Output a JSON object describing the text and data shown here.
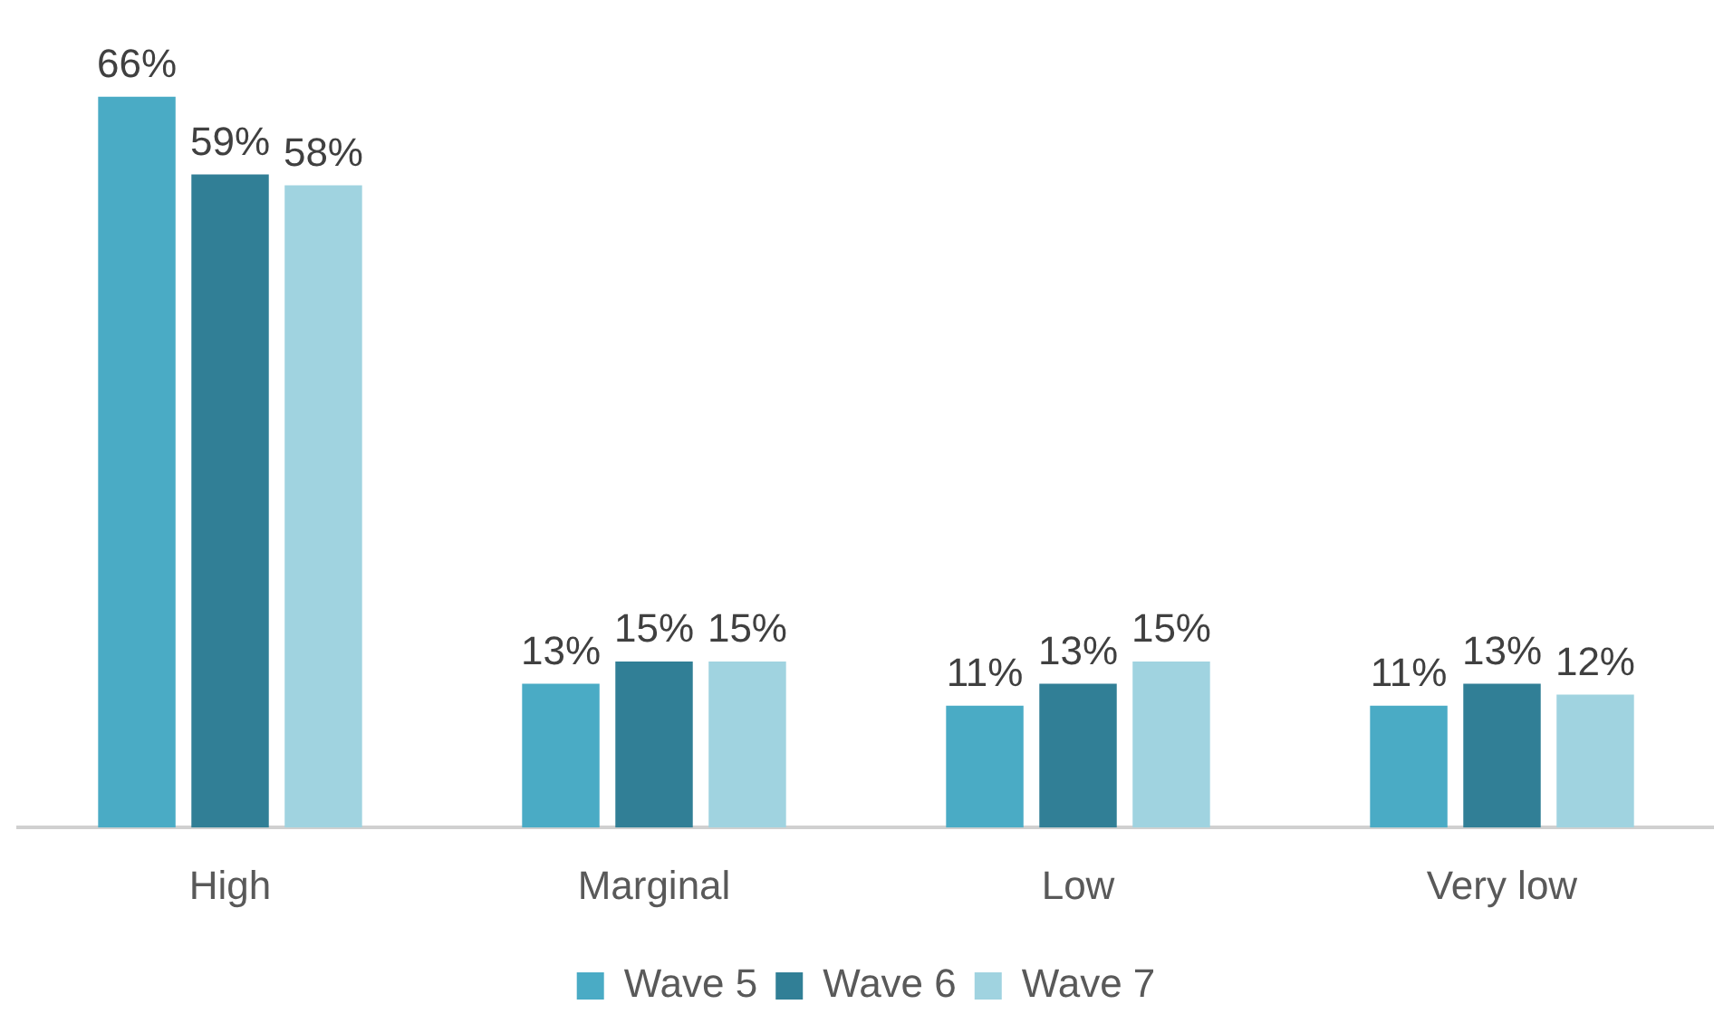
{
  "chart_data": {
    "type": "bar",
    "categories": [
      "High",
      "Marginal",
      "Low",
      "Very low"
    ],
    "series": [
      {
        "name": "Wave 5",
        "color": "#4aabc5",
        "values": [
          66,
          13,
          11,
          11
        ],
        "value_labels": [
          "66%",
          "13%",
          "11%",
          "11%"
        ]
      },
      {
        "name": "Wave 6",
        "color": "#317f96",
        "values": [
          59,
          15,
          13,
          13
        ],
        "value_labels": [
          "59%",
          "15%",
          "13%",
          "13%"
        ]
      },
      {
        "name": "Wave 7",
        "color": "#a0d3e0",
        "values": [
          58,
          15,
          15,
          12
        ],
        "value_labels": [
          "58%",
          "15%",
          "15%",
          "12%"
        ]
      }
    ],
    "legend": "bottom",
    "grid": false
  }
}
